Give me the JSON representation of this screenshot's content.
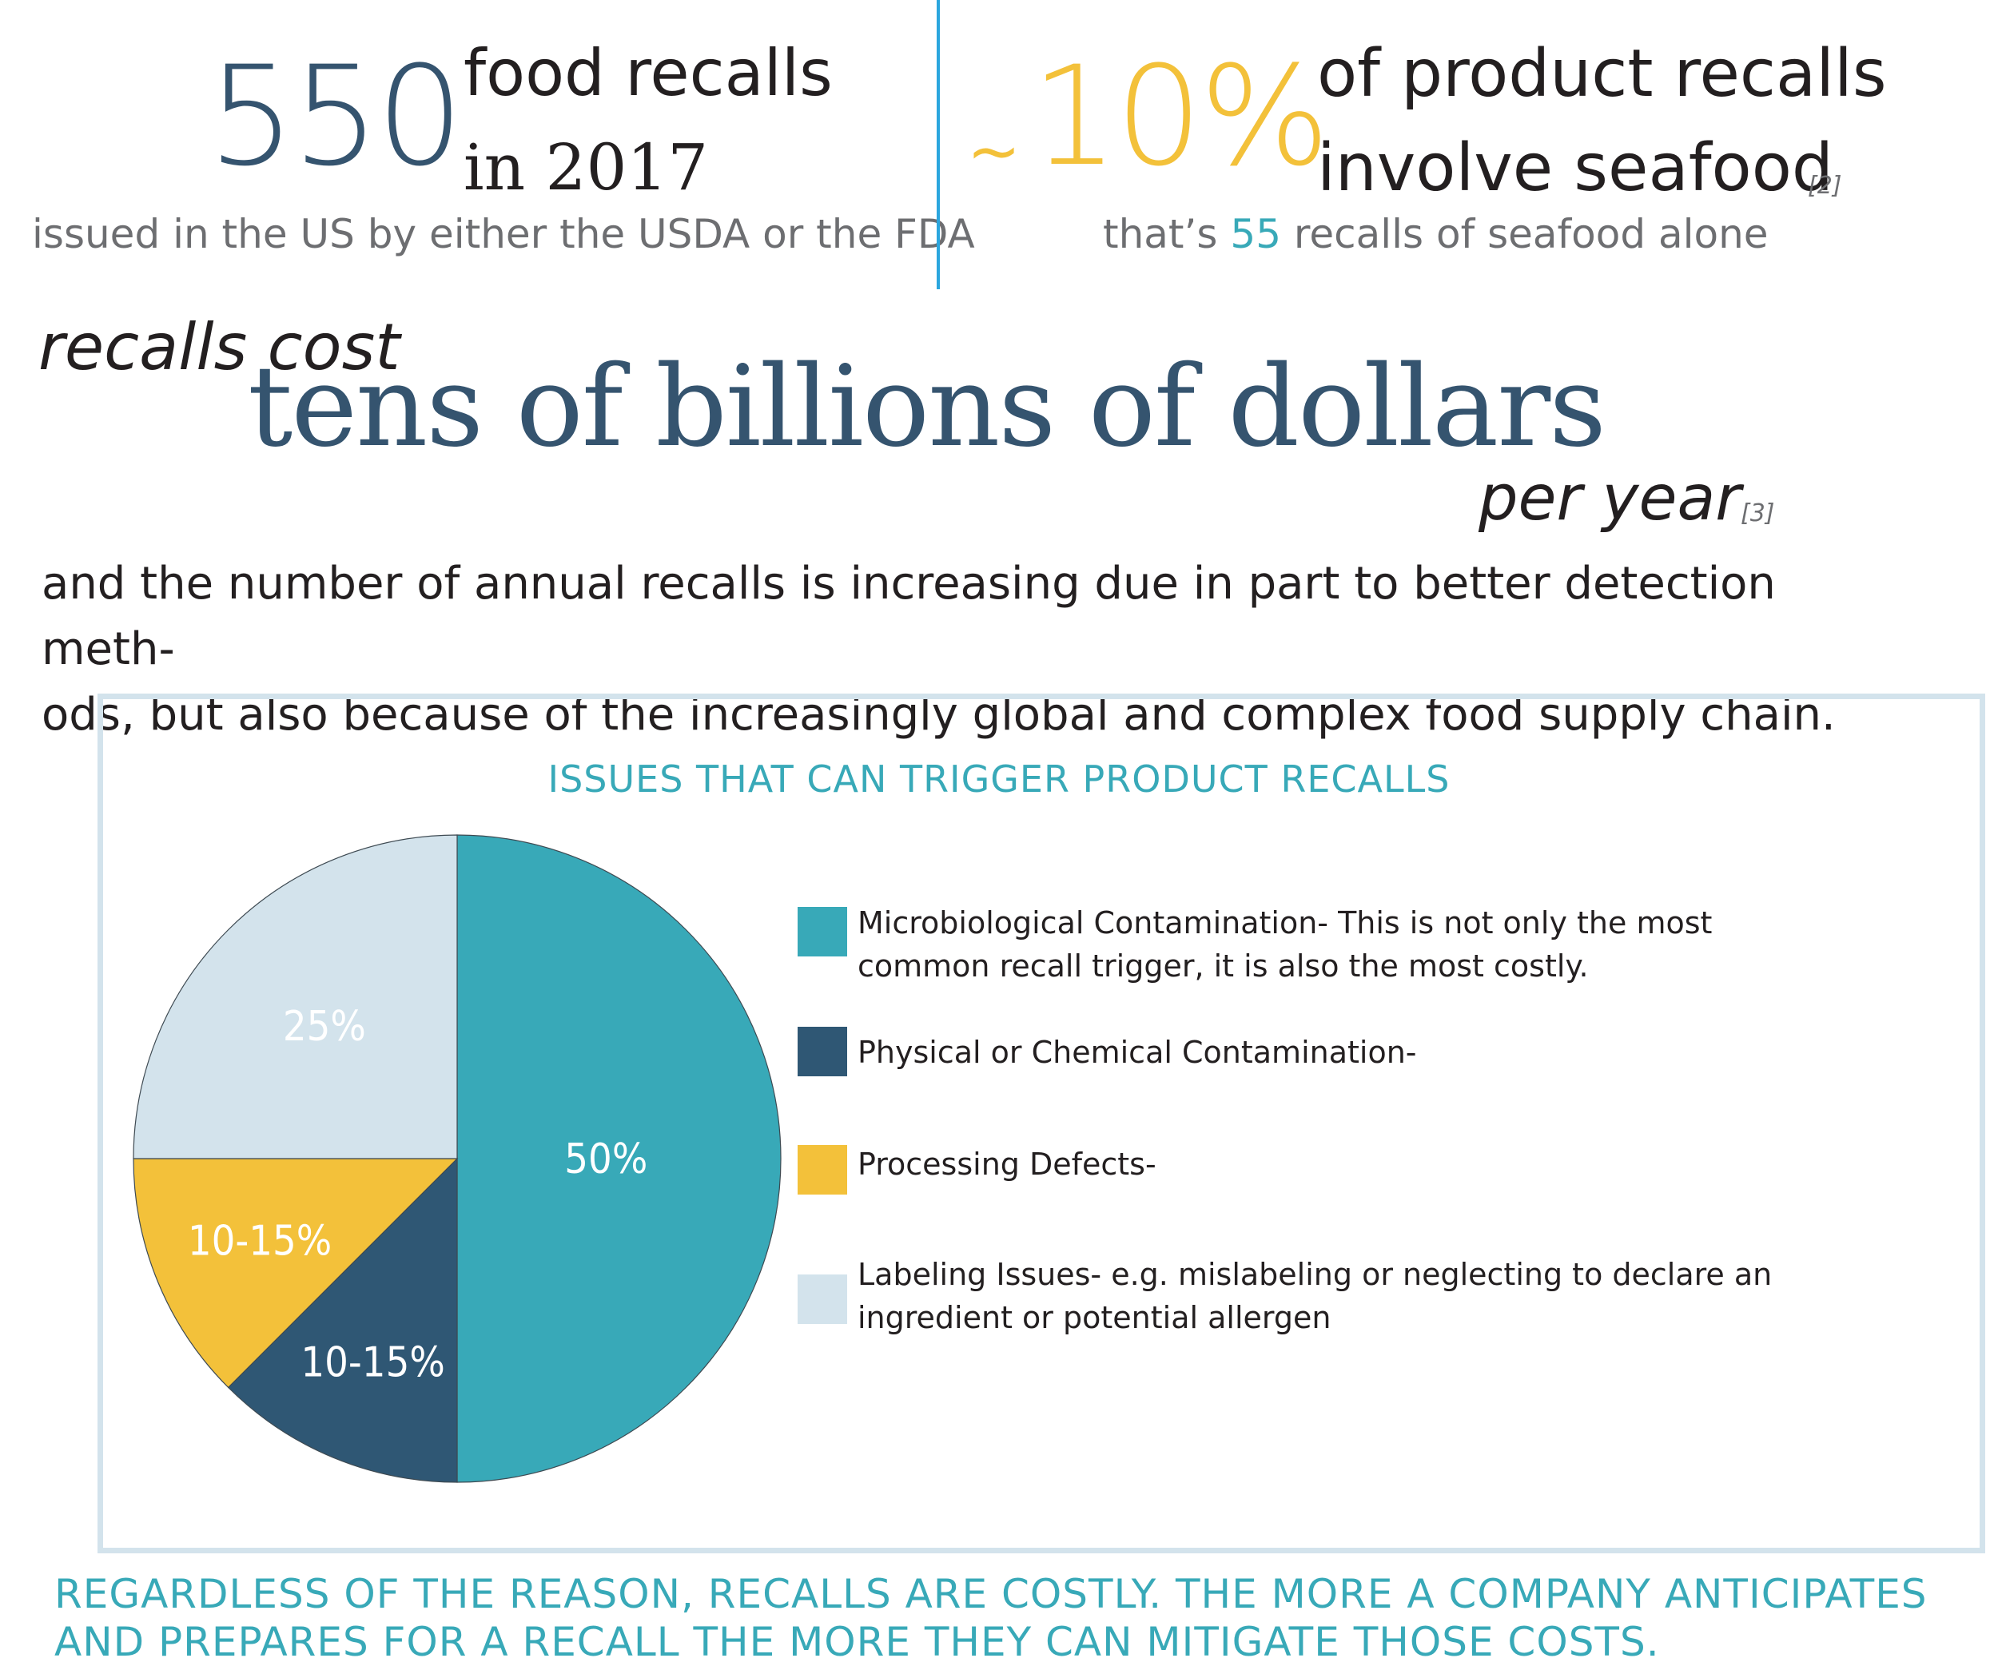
{
  "stats": {
    "recalls_count": "550",
    "recalls_line1": "food recalls",
    "recalls_line2": "in 2017",
    "recalls_sub": "issued in the US by either the USDA or the FDA",
    "seafood_tilde": "~",
    "seafood_pct": "10%",
    "seafood_line1": "of product recalls",
    "seafood_line2": "involve seafood",
    "seafood_ref": "[2]",
    "seafood_sub_pre": "that’s",
    "seafood_sub_num": "55",
    "seafood_sub_post": "recalls of seafood alone"
  },
  "cost": {
    "lead": "recalls cost",
    "headline": "tens of billions of dollars",
    "tail": "per year",
    "ref": "[3]"
  },
  "paragraph": "and the number of annual recalls is increasing due in part to  better detection meth-ods, but also because of the increasingly global and complex food supply chain.",
  "paragraph_lines": [
    "and the number of annual recalls is increasing due in part to  better detection meth-",
    "ods, but also because of the increasingly global and complex food supply chain."
  ],
  "chart_data": {
    "type": "pie",
    "title": "ISSUES THAT CAN TRIGGER PRODUCT RECALLS",
    "slices": [
      {
        "label": "50%",
        "value": 50,
        "color": "#38a9b8",
        "legend": "Microbiological Contamination- This is not only the most common recall trigger, it is also the most costly."
      },
      {
        "label": "10-15%",
        "value": 12.5,
        "color": "#2f5774",
        "legend": "Physical or Chemical Contamination-"
      },
      {
        "label": "10-15%",
        "value": 12.5,
        "color": "#f3c13a",
        "legend": "Processing Defects-"
      },
      {
        "label": "25%",
        "value": 25,
        "color": "#d3e3ec",
        "legend": "Labeling Issues- e.g. mislabeling or neglecting to declare an ingredient or potential allergen"
      }
    ],
    "start_angle": "12 o'clock",
    "direction": "clockwise",
    "legend_position": "right"
  },
  "legend_lines": [
    [
      "Microbiological Contamination- This is not only the most",
      "common recall trigger, it is also the most costly."
    ],
    [
      "Physical or Chemical Contamination-"
    ],
    [
      "Processing Defects-"
    ],
    [
      "Labeling Issues- e.g. mislabeling or neglecting to declare an",
      "ingredient or potential allergen"
    ]
  ],
  "bottom_note": "REGARDLESS OF THE REASON, RECALLS ARE COSTLY. THE MORE A COMPANY ANTICIPATES AND PREPARES FOR A RECALL THE MORE THEY CAN MITIGATE THOSE COSTS.",
  "bottom_note_lines": [
    "REGARDLESS OF THE REASON, RECALLS ARE COSTLY. THE MORE A COMPANY ANTICIPATES",
    "AND PREPARES FOR A RECALL THE MORE THEY CAN MITIGATE THOSE COSTS."
  ]
}
